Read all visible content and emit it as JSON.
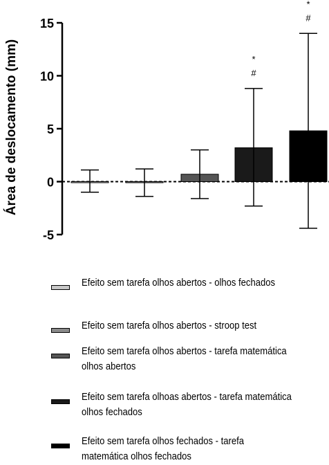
{
  "chart_data": {
    "type": "bar",
    "ylabel": "Área de deslocamento (mm)",
    "ylim": [
      -5,
      15
    ],
    "yticks": [
      -5,
      0,
      5,
      10,
      15
    ],
    "zero_line_dashed": true,
    "series": [
      {
        "name": "Efeito sem tarefa olhos abertos - olhos fechados",
        "value": 0.0,
        "error_low": -1.0,
        "error_high": 1.1,
        "color": "#c8c8c8",
        "annotation": []
      },
      {
        "name": "Efeito sem tarefa olhos abertos - stroop test",
        "value": -0.1,
        "error_low": -1.4,
        "error_high": 1.2,
        "color": "#8a8a8a",
        "annotation": []
      },
      {
        "name": "Efeito sem tarefa olhos abertos - tarefa matemática olhos abertos",
        "value": 0.7,
        "error_low": -1.6,
        "error_high": 3.0,
        "color": "#555555",
        "annotation": []
      },
      {
        "name": "Efeito sem tarefa olhoas abertos - tarefa matemática olhos fechados",
        "value": 3.2,
        "error_low": -2.3,
        "error_high": 8.8,
        "color": "#1a1a1a",
        "annotation": [
          "*",
          "#"
        ]
      },
      {
        "name": "Efeito sem tarefa olhos fechados - tarefa matemática olhos fechados",
        "value": 4.8,
        "error_low": -4.4,
        "error_high": 14.0,
        "color": "#000000",
        "annotation": [
          "*",
          "#"
        ]
      }
    ]
  },
  "legend": [
    {
      "label": "Efeito sem tarefa olhos abertos - olhos fechados",
      "color": "#c8c8c8"
    },
    {
      "label": "Efeito sem tarefa olhos abertos - stroop test",
      "color": "#8a8a8a"
    },
    {
      "label": "Efeito sem tarefa olhos abertos - tarefa matemática olhos abertos",
      "color": "#555555"
    },
    {
      "label": "Efeito sem tarefa olhoas abertos - tarefa matemática olhos fechados",
      "color": "#1a1a1a"
    },
    {
      "label": "Efeito sem tarefa olhos fechados - tarefa matemática olhos fechados",
      "color": "#000000"
    }
  ]
}
